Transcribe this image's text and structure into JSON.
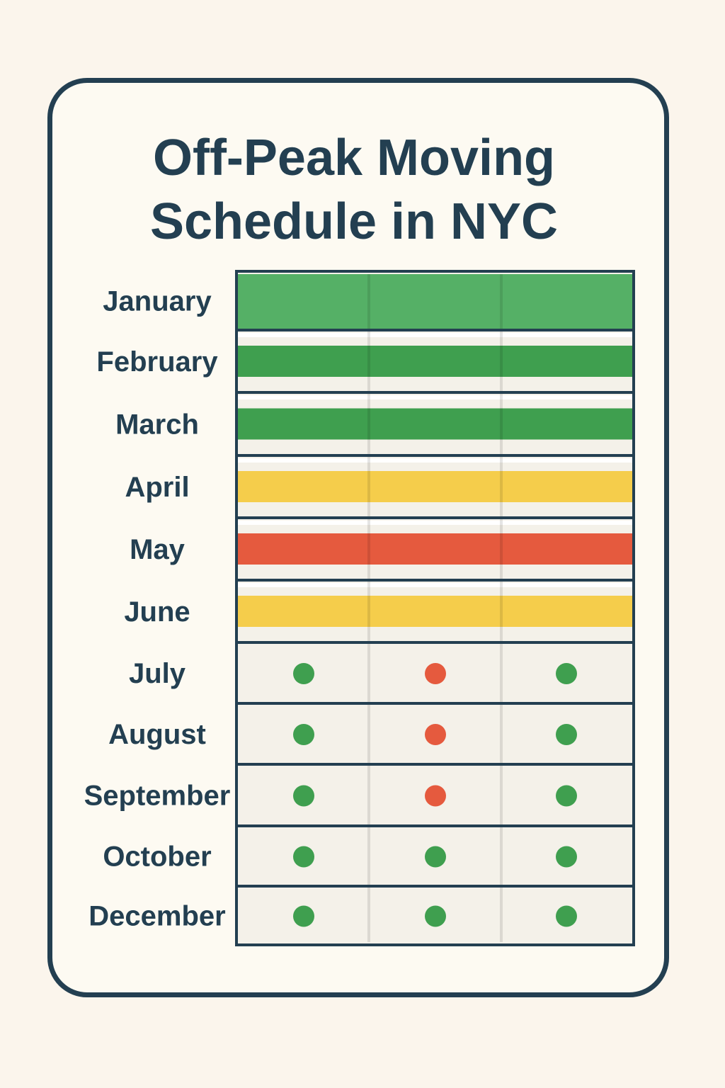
{
  "title_line1": "Off-Peak Moving",
  "title_line2": "Schedule in NYC",
  "colors": {
    "frame": "#233f51",
    "green": "#3f9f4f",
    "yellow": "#f5cd4b",
    "red": "#e55a3e",
    "row_bg": "#f4f1e9"
  },
  "chart_data": {
    "type": "table",
    "title": "Off-Peak Moving Schedule in NYC",
    "columns": 3,
    "rows": [
      {
        "month": "January",
        "display": "bar",
        "color": "green"
      },
      {
        "month": "February",
        "display": "bar",
        "color": "green"
      },
      {
        "month": "March",
        "display": "bar",
        "color": "green"
      },
      {
        "month": "April",
        "display": "bar",
        "color": "yellow"
      },
      {
        "month": "May",
        "display": "bar",
        "color": "red"
      },
      {
        "month": "June",
        "display": "bar",
        "color": "yellow"
      },
      {
        "month": "July",
        "display": "dots",
        "dots": [
          "green",
          "red",
          "green"
        ]
      },
      {
        "month": "August",
        "display": "dots",
        "dots": [
          "green",
          "red",
          "green"
        ]
      },
      {
        "month": "September",
        "display": "dots",
        "dots": [
          "green",
          "red",
          "green"
        ]
      },
      {
        "month": "October",
        "display": "dots",
        "dots": [
          "green",
          "green",
          "green"
        ]
      },
      {
        "month": "December",
        "display": "dots",
        "dots": [
          "green",
          "green",
          "green"
        ]
      }
    ]
  }
}
